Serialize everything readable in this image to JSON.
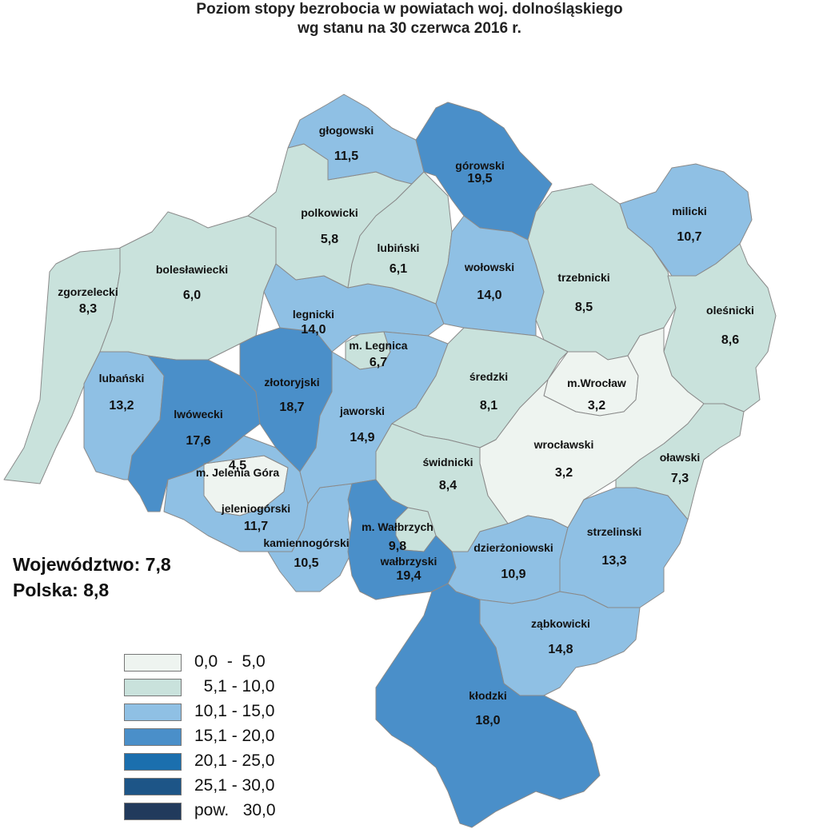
{
  "title": {
    "line1": "Poziom stopy bezrobocia w powiatach woj. dolnośląskiego",
    "line2": "wg stanu na 30 czerwca 2016 r."
  },
  "summary": {
    "voivodeship": "Województwo: 7,8",
    "poland": "Polska: 8,8"
  },
  "legend": [
    {
      "label": "0,0  -  5,0",
      "color": "#eef4f0"
    },
    {
      "label": "  5,1 - 10,0",
      "color": "#c9e2dc"
    },
    {
      "label": "10,1 - 15,0",
      "color": "#8fc0e4"
    },
    {
      "label": "15,1 - 20,0",
      "color": "#4a8fc9"
    },
    {
      "label": "20,1 - 25,0",
      "color": "#1b6fae"
    },
    {
      "label": "25,1 - 30,0",
      "color": "#1d5587"
    },
    {
      "label": "pow.   30,0",
      "color": "#213a5c"
    }
  ],
  "regions": [
    {
      "id": "zgorzelecki",
      "name": "zgorzelecki",
      "value": "8,3",
      "color": "#c9e2dc"
    },
    {
      "id": "boleslawiecki",
      "name": "bolesławiecki",
      "value": "6,0",
      "color": "#c9e2dc"
    },
    {
      "id": "lubanski",
      "name": "lubański",
      "value": "13,2",
      "color": "#8fc0e4"
    },
    {
      "id": "lwowecki",
      "name": "lwówecki",
      "value": "17,6",
      "color": "#4a8fc9"
    },
    {
      "id": "jelenia-gora",
      "name": "m. Jelenia Góra",
      "value": "4,5",
      "color": "#eef4f0"
    },
    {
      "id": "jeleniogorski",
      "name": "jeleniogórski",
      "value": "11,7",
      "color": "#8fc0e4"
    },
    {
      "id": "kamiennogorski",
      "name": "kamiennogórski",
      "value": "10,5",
      "color": "#8fc0e4"
    },
    {
      "id": "zlotoryjski",
      "name": "złotoryjski",
      "value": "18,7",
      "color": "#4a8fc9"
    },
    {
      "id": "legnicki",
      "name": "legnicki",
      "value": "14,0",
      "color": "#8fc0e4"
    },
    {
      "id": "m-legnica",
      "name": "m. Legnica",
      "value": "6,7",
      "color": "#c9e2dc"
    },
    {
      "id": "jaworski",
      "name": "jaworski",
      "value": "14,9",
      "color": "#8fc0e4"
    },
    {
      "id": "polkowicki",
      "name": "polkowicki",
      "value": "5,8",
      "color": "#c9e2dc"
    },
    {
      "id": "glogowski",
      "name": "głogowski",
      "value": "11,5",
      "color": "#8fc0e4"
    },
    {
      "id": "lubinski",
      "name": "lubiński",
      "value": "6,1",
      "color": "#c9e2dc"
    },
    {
      "id": "gorowski",
      "name": "górowski",
      "value": "19,5",
      "color": "#4a8fc9"
    },
    {
      "id": "wolowski",
      "name": "wołowski",
      "value": "14,0",
      "color": "#8fc0e4"
    },
    {
      "id": "trzebnicki",
      "name": "trzebnicki",
      "value": "8,5",
      "color": "#c9e2dc"
    },
    {
      "id": "milicki",
      "name": "milicki",
      "value": "10,7",
      "color": "#8fc0e4"
    },
    {
      "id": "olesnicki",
      "name": "oleśnicki",
      "value": "8,6",
      "color": "#c9e2dc"
    },
    {
      "id": "sredzki",
      "name": "średzki",
      "value": "8,1",
      "color": "#c9e2dc"
    },
    {
      "id": "m-wroclaw",
      "name": "m.Wrocław",
      "value": "3,2",
      "color": "#eef4f0"
    },
    {
      "id": "wroclawski",
      "name": "wrocławski",
      "value": "3,2",
      "color": "#eef4f0"
    },
    {
      "id": "olawski",
      "name": "oławski",
      "value": "7,3",
      "color": "#c9e2dc"
    },
    {
      "id": "swidnicki",
      "name": "świdnicki",
      "value": "8,4",
      "color": "#c9e2dc"
    },
    {
      "id": "m-walbrzych",
      "name": "m. Wałbrzych",
      "value": "9,8",
      "color": "#c9e2dc"
    },
    {
      "id": "walbrzyski",
      "name": "wałbrzyski",
      "value": "19,4",
      "color": "#4a8fc9"
    },
    {
      "id": "dzierzoniowski",
      "name": "dzierżoniowski",
      "value": "10,9",
      "color": "#8fc0e4"
    },
    {
      "id": "strzelinski",
      "name": "strzelinski",
      "value": "13,3",
      "color": "#8fc0e4"
    },
    {
      "id": "zabkowicki",
      "name": "ząbkowicki",
      "value": "14,8",
      "color": "#8fc0e4"
    },
    {
      "id": "klodzki",
      "name": "kłodzki",
      "value": "18,0",
      "color": "#4a8fc9"
    }
  ]
}
